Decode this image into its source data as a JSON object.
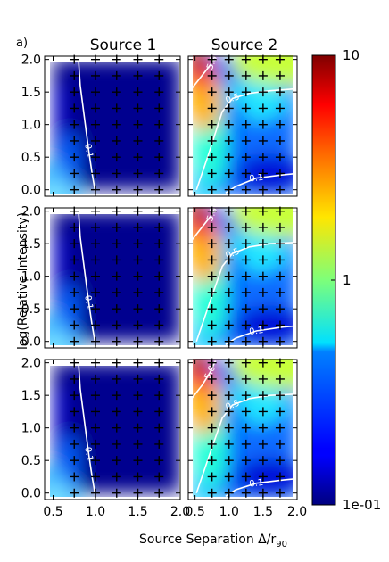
{
  "figure": {
    "panel_label": "a)",
    "columns": [
      "Source 1",
      "Source 2"
    ],
    "xlabel_main": "Source Separation Δ/r",
    "xlabel_sub": "90",
    "ylabel": "log(Relative Intensity)"
  },
  "chart_data": {
    "type": "heatmap",
    "xlabel": "Source Separation Δ/r90",
    "ylabel": "log(Relative Intensity)",
    "xlim": [
      0.4,
      2.0
    ],
    "ylim": [
      -0.1,
      2.05
    ],
    "xticks": [
      "0.5",
      "1.0",
      "1.5",
      "2.0"
    ],
    "yticks": [
      "0.0",
      "0.5",
      "1.0",
      "1.5",
      "2.0"
    ],
    "colorbar": {
      "scale": "log",
      "range": [
        0.1,
        10
      ],
      "tick_labels": [
        "10",
        "1",
        "1e-01"
      ],
      "colormap": "jet"
    },
    "sample_grid": {
      "x": [
        0.75,
        1.0,
        1.25,
        1.5,
        1.75,
        2.0
      ],
      "y": [
        0.0,
        0.25,
        0.5,
        0.75,
        1.0,
        1.25,
        1.5,
        1.75,
        2.0
      ]
    },
    "panels": [
      {
        "row": 1,
        "column": "Source 1",
        "contours": [
          {
            "level": 0.1,
            "label": "0.1",
            "points": [
              [
                0.8,
                2.0
              ],
              [
                0.82,
                1.6
              ],
              [
                0.86,
                1.2
              ],
              [
                0.92,
                0.6
              ],
              [
                0.96,
                0.25
              ],
              [
                1.0,
                -0.05
              ]
            ]
          }
        ]
      },
      {
        "row": 1,
        "column": "Source 2",
        "contours": [
          {
            "level": 5.0,
            "label": "5.0",
            "points": [
              [
                0.45,
                1.55
              ],
              [
                0.6,
                1.75
              ],
              [
                0.75,
                1.95
              ],
              [
                0.78,
                2.03
              ]
            ]
          },
          {
            "level": 0.5,
            "label": "0.5",
            "points": [
              [
                0.52,
                0.0
              ],
              [
                0.7,
                0.55
              ],
              [
                0.9,
                1.2
              ],
              [
                1.05,
                1.4
              ],
              [
                1.3,
                1.48
              ],
              [
                1.6,
                1.52
              ],
              [
                2.0,
                1.55
              ]
            ]
          },
          {
            "level": 0.1,
            "label": "0.1",
            "points": [
              [
                0.95,
                -0.05
              ],
              [
                1.1,
                0.05
              ],
              [
                1.4,
                0.18
              ],
              [
                1.8,
                0.23
              ],
              [
                2.0,
                0.25
              ]
            ]
          }
        ]
      },
      {
        "row": 2,
        "column": "Source 1",
        "contours": [
          {
            "level": 0.1,
            "label": "0.1",
            "points": [
              [
                0.8,
                2.0
              ],
              [
                0.82,
                1.6
              ],
              [
                0.86,
                1.2
              ],
              [
                0.92,
                0.6
              ],
              [
                0.96,
                0.25
              ],
              [
                1.0,
                -0.05
              ]
            ]
          }
        ]
      },
      {
        "row": 2,
        "column": "Source 2",
        "contours": [
          {
            "level": 5.0,
            "label": "5.0",
            "points": [
              [
                0.45,
                1.55
              ],
              [
                0.6,
                1.75
              ],
              [
                0.75,
                1.95
              ],
              [
                0.78,
                2.03
              ]
            ]
          },
          {
            "level": 0.5,
            "label": "0.5",
            "points": [
              [
                0.52,
                0.0
              ],
              [
                0.7,
                0.55
              ],
              [
                0.9,
                1.15
              ],
              [
                1.05,
                1.35
              ],
              [
                1.3,
                1.45
              ],
              [
                1.6,
                1.5
              ],
              [
                2.0,
                1.52
              ]
            ]
          },
          {
            "level": 0.1,
            "label": "0.1",
            "points": [
              [
                0.95,
                -0.05
              ],
              [
                1.1,
                0.05
              ],
              [
                1.4,
                0.16
              ],
              [
                1.8,
                0.22
              ],
              [
                2.0,
                0.24
              ]
            ]
          }
        ]
      },
      {
        "row": 3,
        "column": "Source 1",
        "contours": [
          {
            "level": 0.1,
            "label": "0.1",
            "points": [
              [
                0.8,
                2.0
              ],
              [
                0.82,
                1.6
              ],
              [
                0.86,
                1.2
              ],
              [
                0.92,
                0.6
              ],
              [
                0.96,
                0.25
              ],
              [
                1.0,
                -0.05
              ]
            ]
          }
        ]
      },
      {
        "row": 3,
        "column": "Source 2",
        "contours": [
          {
            "level": 5.0,
            "label": "5.0",
            "points": [
              [
                0.45,
                1.45
              ],
              [
                0.6,
                1.65
              ],
              [
                0.72,
                1.85
              ],
              [
                0.8,
                2.03
              ]
            ]
          },
          {
            "level": 0.5,
            "label": "0.5",
            "points": [
              [
                0.52,
                0.0
              ],
              [
                0.7,
                0.55
              ],
              [
                0.9,
                1.15
              ],
              [
                1.05,
                1.35
              ],
              [
                1.3,
                1.45
              ],
              [
                1.6,
                1.5
              ],
              [
                2.0,
                1.52
              ]
            ]
          },
          {
            "level": 0.1,
            "label": "0.1",
            "points": [
              [
                0.95,
                -0.05
              ],
              [
                1.1,
                0.05
              ],
              [
                1.4,
                0.15
              ],
              [
                1.8,
                0.2
              ],
              [
                2.0,
                0.22
              ]
            ]
          }
        ]
      }
    ]
  }
}
